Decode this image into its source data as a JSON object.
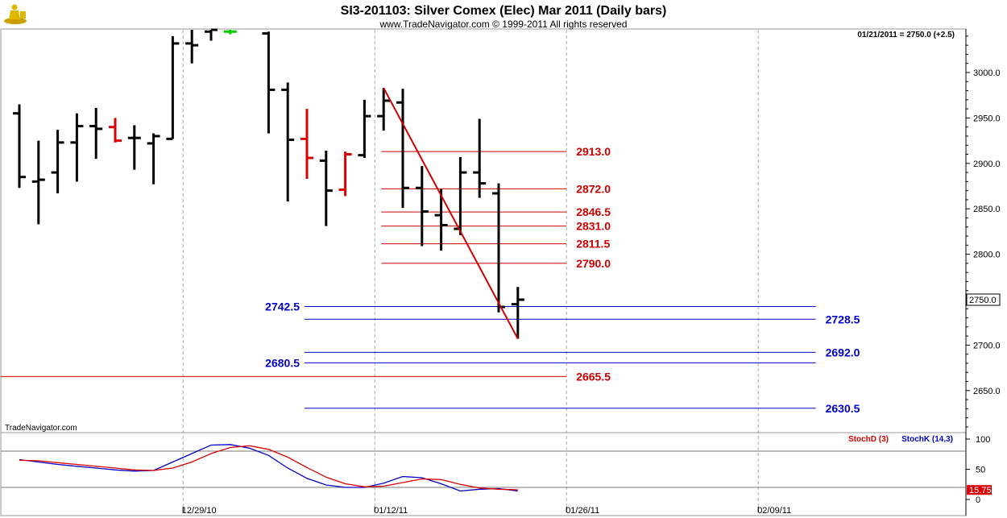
{
  "header": {
    "title": "SI3-201103:  Silver Comex (Elec) Mar 2011  (Daily bars)",
    "copyright": "www.TradeNavigator.com © 1999-2011 All rights reserved",
    "readout": "01/21/2011 = 2750.0 (+2.5)",
    "watermark": "TradeNavigator.com",
    "logo_icon": "trader-figure-icon"
  },
  "colors": {
    "bar": "#000000",
    "down_bar": "#dd0000",
    "up_tick": "#00cc00",
    "red_level": "#cc0000",
    "blue_level": "#0000cc",
    "trendline": "#cc0000",
    "stoch_d": "#dd0000",
    "stoch_k": "#0000cc",
    "grid": "#aaaaaa"
  },
  "chart_data": [
    {
      "type": "ohlc",
      "title": "SI3-201103:  Silver Comex (Elec) Mar 2011  (Daily bars)",
      "ylim": [
        2600,
        3050
      ],
      "y_ticks": [
        "3000.0",
        "2950.0",
        "2900.0",
        "2850.0",
        "2800.0",
        "2750.0",
        "2700.0",
        "2650.0"
      ],
      "y_tick_values": [
        3000,
        2950,
        2900,
        2850,
        2800,
        2750,
        2700,
        2650
      ],
      "x_tick_labels": [
        "12/29/10",
        "01/12/11",
        "01/26/11",
        "02/09/11"
      ],
      "x_tick_slots": [
        9,
        19,
        29,
        39
      ],
      "last_price_label": "2750.0",
      "last_price": 2750.0,
      "bars": [
        {
          "slot": 0,
          "o": 2955,
          "h": 2965,
          "l": 2873,
          "c": 2885,
          "color": "black"
        },
        {
          "slot": 1,
          "o": 2880,
          "h": 2925,
          "l": 2833,
          "c": 2882,
          "color": "black"
        },
        {
          "slot": 2,
          "o": 2890,
          "h": 2937,
          "l": 2867,
          "c": 2923,
          "color": "black"
        },
        {
          "slot": 3,
          "o": 2923,
          "h": 2955,
          "l": 2880,
          "c": 2941,
          "color": "black"
        },
        {
          "slot": 4,
          "o": 2941,
          "h": 2961,
          "l": 2905,
          "c": 2938,
          "color": "black"
        },
        {
          "slot": 5,
          "o": 2940,
          "h": 2950,
          "l": 2923,
          "c": 2925,
          "color": "red"
        },
        {
          "slot": 6,
          "o": 2928,
          "h": 2942,
          "l": 2893,
          "c": 2928,
          "color": "black"
        },
        {
          "slot": 7,
          "o": 2922,
          "h": 2933,
          "l": 2877,
          "c": 2930,
          "color": "black"
        },
        {
          "slot": 8,
          "o": 2927,
          "h": 3040,
          "l": 2927,
          "c": 3032,
          "color": "black"
        },
        {
          "slot": 9,
          "o": 3032,
          "h": 3058,
          "l": 3010,
          "c": 3030,
          "color": "black"
        },
        {
          "slot": 10,
          "o": 3045,
          "h": 3060,
          "l": 3035,
          "c": 3047,
          "color": "black"
        },
        {
          "slot": 11,
          "o": 3045,
          "h": 3050,
          "l": 3042,
          "c": 3045,
          "color": "green"
        },
        {
          "slot": 13,
          "o": 3043,
          "h": 3045,
          "l": 2933,
          "c": 2981,
          "color": "black"
        },
        {
          "slot": 14,
          "o": 2981,
          "h": 2989,
          "l": 2858,
          "c": 2926,
          "color": "black"
        },
        {
          "slot": 15,
          "o": 2927,
          "h": 2960,
          "l": 2883,
          "c": 2906,
          "color": "red"
        },
        {
          "slot": 16,
          "o": 2903,
          "h": 2914,
          "l": 2831,
          "c": 2870,
          "color": "black"
        },
        {
          "slot": 17,
          "o": 2871,
          "h": 2913,
          "l": 2864,
          "c": 2910,
          "color": "red"
        },
        {
          "slot": 18,
          "o": 2909,
          "h": 2970,
          "l": 2906,
          "c": 2952,
          "color": "black"
        },
        {
          "slot": 19,
          "o": 2952,
          "h": 2983,
          "l": 2936,
          "c": 2969,
          "color": "black"
        },
        {
          "slot": 20,
          "o": 2967,
          "h": 2982,
          "l": 2851,
          "c": 2873,
          "color": "black"
        },
        {
          "slot": 21,
          "o": 2873,
          "h": 2897,
          "l": 2809,
          "c": 2847,
          "color": "black"
        },
        {
          "slot": 22,
          "o": 2843,
          "h": 2872,
          "l": 2804,
          "c": 2832,
          "color": "black"
        },
        {
          "slot": 23,
          "o": 2828,
          "h": 2907,
          "l": 2821,
          "c": 2890,
          "color": "black"
        },
        {
          "slot": 24,
          "o": 2890,
          "h": 2949,
          "l": 2862,
          "c": 2878,
          "color": "black"
        },
        {
          "slot": 25,
          "o": 2867,
          "h": 2878,
          "l": 2736,
          "c": 2742,
          "color": "black"
        },
        {
          "slot": 26,
          "o": 2745,
          "h": 2764,
          "l": 2707,
          "c": 2750,
          "color": "black"
        }
      ],
      "trendline": {
        "from": {
          "slot": 19,
          "price": 2983
        },
        "to": {
          "slot": 26,
          "price": 2707
        }
      },
      "levels": [
        {
          "label": "2913.0",
          "price": 2913.0,
          "color": "red",
          "from_slot": 19,
          "to_slot": 29,
          "label_side": "right"
        },
        {
          "label": "2872.0",
          "price": 2872.0,
          "color": "red",
          "from_slot": 19,
          "to_slot": 29,
          "label_side": "right"
        },
        {
          "label": "2846.5",
          "price": 2846.5,
          "color": "red",
          "from_slot": 19,
          "to_slot": 29,
          "label_side": "right"
        },
        {
          "label": "2831.0",
          "price": 2831.0,
          "color": "red",
          "from_slot": 19,
          "to_slot": 29,
          "label_side": "right"
        },
        {
          "label": "2811.5",
          "price": 2811.5,
          "color": "red",
          "from_slot": 19,
          "to_slot": 29,
          "label_side": "right"
        },
        {
          "label": "2790.0",
          "price": 2790.0,
          "color": "red",
          "from_slot": 19,
          "to_slot": 29,
          "label_side": "right"
        },
        {
          "label": "2742.5",
          "price": 2742.5,
          "color": "blue",
          "from_slot": 15,
          "to_slot": 42,
          "label_side": "left"
        },
        {
          "label": "2728.5",
          "price": 2728.5,
          "color": "blue",
          "from_slot": 15,
          "to_slot": 42,
          "label_side": "right"
        },
        {
          "label": "2692.0",
          "price": 2692.0,
          "color": "blue",
          "from_slot": 15,
          "to_slot": 42,
          "label_side": "right"
        },
        {
          "label": "2680.5",
          "price": 2680.5,
          "color": "blue",
          "from_slot": 15,
          "to_slot": 42,
          "label_side": "left"
        },
        {
          "label": "2665.5",
          "price": 2665.5,
          "color": "red",
          "from_slot": -1,
          "to_slot": 29,
          "label_side": "right"
        },
        {
          "label": "2630.5",
          "price": 2630.5,
          "color": "blue",
          "from_slot": 15,
          "to_slot": 42,
          "label_side": "right"
        }
      ]
    },
    {
      "type": "line",
      "title": "",
      "legend": [
        "StochD (3)",
        "StochK (14,3)"
      ],
      "ylim": [
        0,
        105
      ],
      "y_ticks": [
        "100",
        "50",
        "0"
      ],
      "y_tick_values": [
        100,
        50,
        0
      ],
      "ref_lines": [
        80,
        20
      ],
      "last_value_label": "15.75",
      "last_value": 15.75,
      "series": [
        {
          "name": "StochK (14,3)",
          "color": "blue",
          "x": [
            0,
            1,
            2,
            3,
            4,
            5,
            6,
            7,
            8,
            9,
            10,
            11,
            12,
            13,
            14,
            15,
            16,
            17,
            18,
            19,
            20,
            21,
            22,
            23,
            24,
            25,
            26
          ],
          "values": [
            66,
            62,
            58,
            55,
            52,
            49,
            47,
            48,
            62,
            76,
            90,
            91,
            85,
            73,
            52,
            35,
            24,
            20,
            20,
            27,
            38,
            36,
            26,
            14,
            17,
            18,
            14
          ]
        },
        {
          "name": "StochD (3)",
          "color": "red",
          "x": [
            0,
            1,
            2,
            3,
            4,
            5,
            6,
            7,
            8,
            9,
            10,
            11,
            12,
            13,
            14,
            15,
            16,
            17,
            18,
            19,
            20,
            21,
            22,
            23,
            24,
            25,
            26
          ],
          "values": [
            65,
            64,
            61,
            58,
            55,
            52,
            49,
            48,
            52,
            62,
            76,
            86,
            89,
            83,
            70,
            53,
            37,
            26,
            21,
            22,
            28,
            34,
            33,
            25,
            19,
            17,
            16
          ]
        }
      ]
    }
  ]
}
